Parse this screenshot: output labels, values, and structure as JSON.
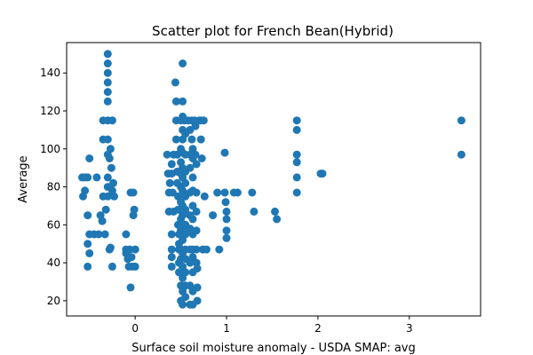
{
  "chart_data": {
    "type": "scatter",
    "title": "Scatter plot for French Bean(Hybrid)",
    "xlabel": "Surface soil moisture anomaly  - USDA SMAP: avg",
    "ylabel": "Average",
    "xlim": [
      -0.75,
      3.78
    ],
    "ylim": [
      12,
      156
    ],
    "xticks": [
      0,
      1,
      2,
      3
    ],
    "xtick_labels": [
      "0",
      "1",
      "2",
      "3"
    ],
    "yticks": [
      20,
      40,
      60,
      80,
      100,
      120,
      140
    ],
    "ytick_labels": [
      "20",
      "40",
      "60",
      "80",
      "100",
      "120",
      "140"
    ],
    "grid": false,
    "color": "#1f77b4",
    "points": [
      [
        -0.58,
        85
      ],
      [
        -0.55,
        85
      ],
      [
        -0.52,
        85
      ],
      [
        -0.5,
        95
      ],
      [
        -0.55,
        78
      ],
      [
        -0.57,
        75
      ],
      [
        -0.52,
        65
      ],
      [
        -0.5,
        55
      ],
      [
        -0.52,
        50
      ],
      [
        -0.5,
        45
      ],
      [
        -0.52,
        38
      ],
      [
        -0.45,
        55
      ],
      [
        -0.42,
        85
      ],
      [
        -0.4,
        55
      ],
      [
        -0.38,
        65
      ],
      [
        -0.36,
        62
      ],
      [
        -0.35,
        75
      ],
      [
        -0.35,
        105
      ],
      [
        -0.35,
        115
      ],
      [
        -0.33,
        55
      ],
      [
        -0.32,
        68
      ],
      [
        -0.3,
        150
      ],
      [
        -0.3,
        145
      ],
      [
        -0.3,
        140
      ],
      [
        -0.3,
        135
      ],
      [
        -0.3,
        130
      ],
      [
        -0.3,
        125
      ],
      [
        -0.3,
        115
      ],
      [
        -0.3,
        105
      ],
      [
        -0.3,
        97
      ],
      [
        -0.3,
        85
      ],
      [
        -0.3,
        80
      ],
      [
        -0.3,
        75
      ],
      [
        -0.28,
        95
      ],
      [
        -0.27,
        100
      ],
      [
        -0.26,
        90
      ],
      [
        -0.25,
        78
      ],
      [
        -0.24,
        82
      ],
      [
        -0.25,
        115
      ],
      [
        -0.23,
        75
      ],
      [
        -0.28,
        47
      ],
      [
        -0.27,
        48
      ],
      [
        -0.25,
        38
      ],
      [
        -0.1,
        55
      ],
      [
        -0.1,
        47
      ],
      [
        -0.1,
        45
      ],
      [
        -0.08,
        42
      ],
      [
        -0.07,
        38
      ],
      [
        -0.06,
        47
      ],
      [
        -0.05,
        27
      ],
      [
        -0.05,
        77
      ],
      [
        -0.04,
        43
      ],
      [
        -0.03,
        38
      ],
      [
        -0.02,
        77
      ],
      [
        -0.02,
        65
      ],
      [
        -0.01,
        68
      ],
      [
        0,
        47
      ],
      [
        0,
        38
      ],
      [
        0.35,
        97
      ],
      [
        0.36,
        87
      ],
      [
        0.37,
        77
      ],
      [
        0.37,
        67
      ],
      [
        0.38,
        82
      ],
      [
        0.4,
        92
      ],
      [
        0.4,
        87
      ],
      [
        0.41,
        77
      ],
      [
        0.42,
        97
      ],
      [
        0.42,
        67
      ],
      [
        0.4,
        55
      ],
      [
        0.4,
        47
      ],
      [
        0.4,
        43
      ],
      [
        0.4,
        38
      ],
      [
        0.44,
        135
      ],
      [
        0.45,
        125
      ],
      [
        0.45,
        115
      ],
      [
        0.45,
        105
      ],
      [
        0.46,
        97
      ],
      [
        0.46,
        88
      ],
      [
        0.46,
        82
      ],
      [
        0.47,
        75
      ],
      [
        0.47,
        68
      ],
      [
        0.47,
        60
      ],
      [
        0.48,
        55
      ],
      [
        0.48,
        50
      ],
      [
        0.48,
        47
      ],
      [
        0.48,
        40
      ],
      [
        0.48,
        35
      ],
      [
        0.5,
        115
      ],
      [
        0.5,
        100
      ],
      [
        0.5,
        93
      ],
      [
        0.5,
        87
      ],
      [
        0.5,
        80
      ],
      [
        0.5,
        72
      ],
      [
        0.5,
        63
      ],
      [
        0.5,
        57
      ],
      [
        0.5,
        47
      ],
      [
        0.5,
        42
      ],
      [
        0.5,
        35
      ],
      [
        0.5,
        28
      ],
      [
        0.5,
        20
      ],
      [
        0.52,
        145
      ],
      [
        0.52,
        125
      ],
      [
        0.52,
        117
      ],
      [
        0.52,
        110
      ],
      [
        0.52,
        105
      ],
      [
        0.52,
        98
      ],
      [
        0.52,
        90
      ],
      [
        0.52,
        85
      ],
      [
        0.52,
        78
      ],
      [
        0.52,
        70
      ],
      [
        0.52,
        65
      ],
      [
        0.52,
        58
      ],
      [
        0.52,
        52
      ],
      [
        0.52,
        45
      ],
      [
        0.52,
        38
      ],
      [
        0.52,
        32
      ],
      [
        0.52,
        25
      ],
      [
        0.52,
        18
      ],
      [
        0.54,
        115
      ],
      [
        0.55,
        108
      ],
      [
        0.55,
        97
      ],
      [
        0.55,
        88
      ],
      [
        0.55,
        82
      ],
      [
        0.55,
        75
      ],
      [
        0.55,
        68
      ],
      [
        0.55,
        60
      ],
      [
        0.55,
        55
      ],
      [
        0.55,
        47
      ],
      [
        0.55,
        42
      ],
      [
        0.55,
        35
      ],
      [
        0.55,
        28
      ],
      [
        0.55,
        22
      ],
      [
        0.58,
        115
      ],
      [
        0.6,
        110
      ],
      [
        0.6,
        97
      ],
      [
        0.6,
        90
      ],
      [
        0.6,
        77
      ],
      [
        0.6,
        65
      ],
      [
        0.6,
        58
      ],
      [
        0.6,
        47
      ],
      [
        0.6,
        40
      ],
      [
        0.6,
        28
      ],
      [
        0.6,
        18
      ],
      [
        0.62,
        115
      ],
      [
        0.62,
        105
      ],
      [
        0.63,
        100
      ],
      [
        0.63,
        95
      ],
      [
        0.63,
        85
      ],
      [
        0.63,
        78
      ],
      [
        0.63,
        70
      ],
      [
        0.63,
        63
      ],
      [
        0.63,
        55
      ],
      [
        0.63,
        47
      ],
      [
        0.63,
        43
      ],
      [
        0.63,
        35
      ],
      [
        0.63,
        25
      ],
      [
        0.63,
        18
      ],
      [
        0.65,
        115
      ],
      [
        0.66,
        112
      ],
      [
        0.66,
        97
      ],
      [
        0.67,
        92
      ],
      [
        0.67,
        77
      ],
      [
        0.67,
        67
      ],
      [
        0.67,
        57
      ],
      [
        0.67,
        47
      ],
      [
        0.67,
        40
      ],
      [
        0.68,
        37
      ],
      [
        0.68,
        27
      ],
      [
        0.68,
        20
      ],
      [
        0.7,
        115
      ],
      [
        0.72,
        115
      ],
      [
        0.72,
        105
      ],
      [
        0.73,
        95
      ],
      [
        0.74,
        47
      ],
      [
        0.75,
        115
      ],
      [
        0.76,
        75
      ],
      [
        0.78,
        47
      ],
      [
        0.85,
        65
      ],
      [
        0.9,
        77
      ],
      [
        0.92,
        47
      ],
      [
        0.98,
        98
      ],
      [
        0.98,
        77
      ],
      [
        0.99,
        72
      ],
      [
        1.0,
        67
      ],
      [
        1.0,
        63
      ],
      [
        1.0,
        57
      ],
      [
        1.0,
        53
      ],
      [
        1.08,
        77
      ],
      [
        1.12,
        77
      ],
      [
        1.28,
        77
      ],
      [
        1.3,
        67
      ],
      [
        1.53,
        67
      ],
      [
        1.55,
        63
      ],
      [
        1.77,
        115
      ],
      [
        1.77,
        110
      ],
      [
        1.77,
        97
      ],
      [
        1.77,
        93
      ],
      [
        1.77,
        85
      ],
      [
        1.77,
        77
      ],
      [
        2.03,
        87
      ],
      [
        2.05,
        87
      ],
      [
        3.57,
        115
      ],
      [
        3.57,
        97
      ]
    ]
  }
}
